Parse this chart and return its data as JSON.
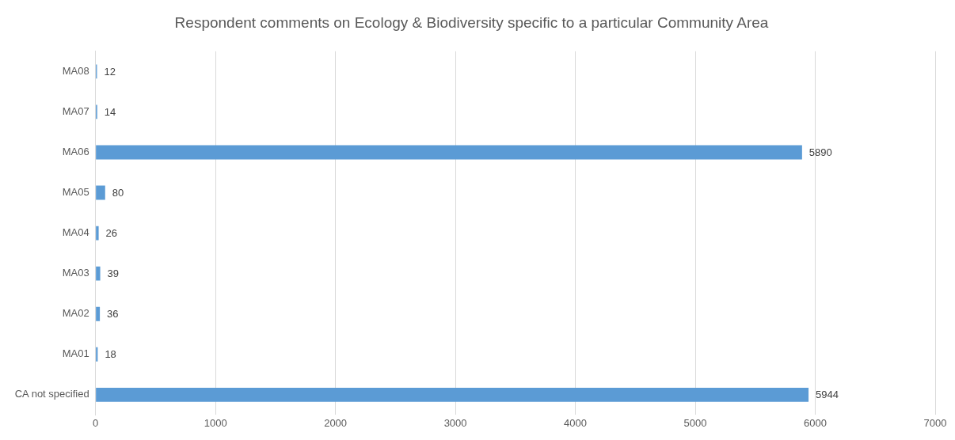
{
  "chart_data": {
    "type": "bar",
    "orientation": "horizontal",
    "title": "Respondent comments on Ecology & Biodiversity specific to a particular Community Area",
    "categories": [
      "MA08",
      "MA07",
      "MA06",
      "MA05",
      "MA04",
      "MA03",
      "MA02",
      "MA01",
      "CA not specified"
    ],
    "values": [
      12,
      14,
      5890,
      80,
      26,
      39,
      36,
      18,
      5944
    ],
    "color": "#5b9bd5",
    "xlim": [
      0,
      7000
    ],
    "xticks": [
      0,
      1000,
      2000,
      3000,
      4000,
      5000,
      6000,
      7000
    ],
    "grid": "x",
    "data_labels": true
  }
}
